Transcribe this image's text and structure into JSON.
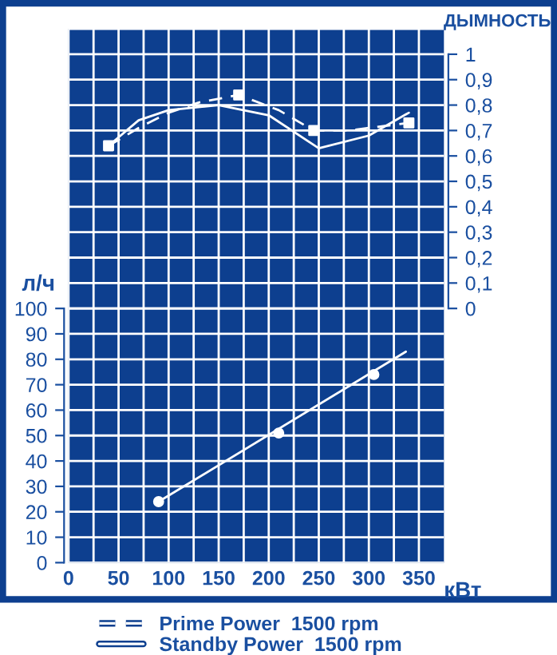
{
  "chart_data": {
    "type": "line",
    "xlabel": "кВт",
    "ylabel": "л/ч",
    "y2label": "ДЫМНОСТЬ",
    "series": [
      {
        "name": "Prime Power  1500 rpm",
        "color": "#ffffff",
        "axis": "y2",
        "x": [
          40,
          70,
          100,
          130,
          170,
          210,
          245,
          280,
          340
        ],
        "values": [
          0.64,
          0.71,
          0.77,
          0.81,
          0.84,
          0.78,
          0.7,
          0.7,
          0.73
        ],
        "marker": "none",
        "line_style": "dashed"
      },
      {
        "type": "scatter",
        "color": "#ffffff",
        "axis": "y2",
        "x": [
          40,
          170,
          245,
          340
        ],
        "values": [
          0.64,
          0.84,
          0.7,
          0.73
        ],
        "marker": "square"
      },
      {
        "name": "Standby Power  1500 rpm",
        "color": "#ffffff",
        "axis": "y2",
        "x": [
          40,
          70,
          100,
          150,
          200,
          250,
          300,
          340
        ],
        "values": [
          0.64,
          0.74,
          0.78,
          0.8,
          0.76,
          0.63,
          0.68,
          0.77
        ],
        "marker": "none",
        "line_style": "solid"
      },
      {
        "color": "#ffffff",
        "x": [
          90,
          337
        ],
        "values": [
          24,
          83
        ],
        "marker": "none",
        "line_style": "solid"
      },
      {
        "type": "scatter",
        "color": "#ffffff",
        "x": [
          90,
          210,
          305
        ],
        "values": [
          24,
          51,
          74
        ],
        "marker": "circle"
      }
    ],
    "xlim": [
      0,
      375
    ],
    "xticks": [
      0,
      {
        "value": 25,
        "label": null
      },
      50,
      {
        "value": 75,
        "label": null
      },
      100,
      {
        "value": 125,
        "label": null
      },
      150,
      {
        "value": 175,
        "label": null
      },
      200,
      {
        "value": 225,
        "label": null
      },
      250,
      {
        "value": 275,
        "label": null
      },
      300,
      {
        "value": 325,
        "label": null
      },
      350
    ],
    "ylim": [
      0,
      210
    ],
    "yticks": [
      0,
      10,
      20,
      30,
      40,
      50,
      60,
      70,
      80,
      90,
      100
    ],
    "y2lim": [
      -1,
      1.1
    ],
    "y2ticks": [
      0,
      {
        "value": 0.1,
        "label": "0,1"
      },
      {
        "value": 0.2,
        "label": "0,2"
      },
      {
        "value": 0.3,
        "label": "0,3"
      },
      {
        "value": 0.4,
        "label": "0,4"
      },
      {
        "value": 0.5,
        "label": "0,5"
      },
      {
        "value": 0.6,
        "label": "0,6"
      },
      {
        "value": 0.7,
        "label": "0,7"
      },
      {
        "value": 0.8,
        "label": "0,8"
      },
      {
        "value": 0.9,
        "label": "0,9"
      },
      1
    ],
    "grid": true,
    "legend": "bottom"
  }
}
